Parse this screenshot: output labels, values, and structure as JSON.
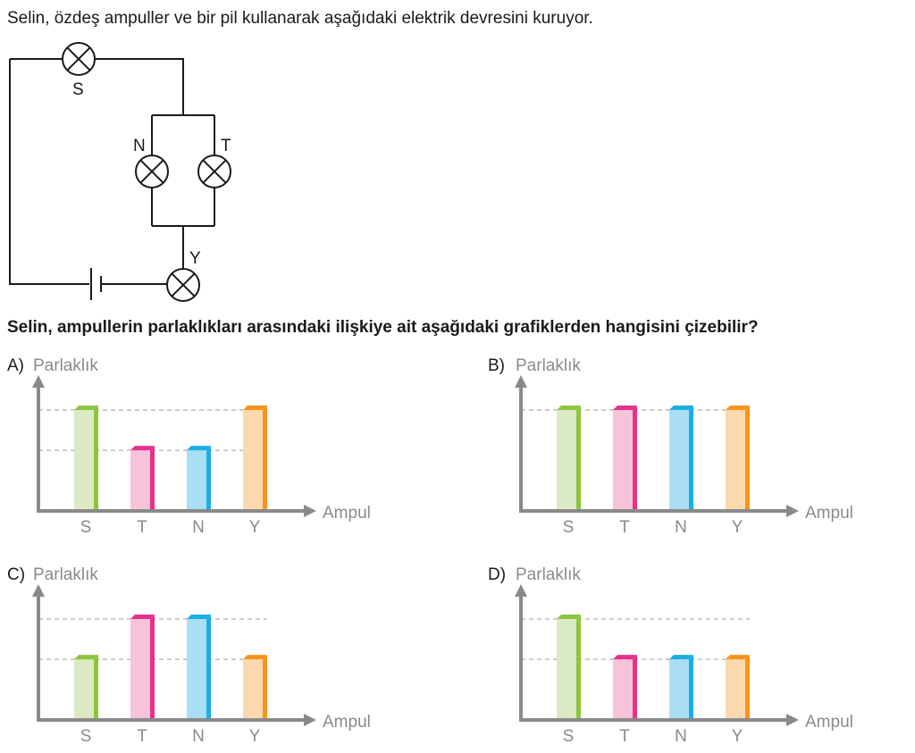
{
  "question": {
    "intro": "Selin, özdeş ampuller ve bir pil kullanarak aşağıdaki elektrik devresini kuruyor.",
    "prompt": "Selin, ampullerin parlaklıkları arasındaki ilişkiye ait aşağıdaki grafiklerden hangisini çizebilir?"
  },
  "circuit": {
    "bulbs": [
      "S",
      "N",
      "T",
      "Y"
    ]
  },
  "colors": {
    "S": {
      "front": "#dbe9c4",
      "side": "#8cc63f"
    },
    "T": {
      "front": "#f6c3d9",
      "side": "#e6318a"
    },
    "N": {
      "front": "#a9def5",
      "side": "#1aaee5"
    },
    "Y": {
      "front": "#fcd8ad",
      "side": "#f7941d"
    },
    "axis": "#8a8a8a",
    "guide": "#999999"
  },
  "chart_data": [
    {
      "type": "bar",
      "option": "A)",
      "ylabel": "Parlaklık",
      "xlabel": "Ampul",
      "categories": [
        "S",
        "T",
        "N",
        "Y"
      ],
      "values": [
        2,
        1.2,
        1.2,
        2
      ],
      "ylim": [
        0,
        2.3
      ]
    },
    {
      "type": "bar",
      "option": "B)",
      "ylabel": "Parlaklık",
      "xlabel": "Ampul",
      "categories": [
        "S",
        "T",
        "N",
        "Y"
      ],
      "values": [
        2,
        2,
        2,
        2
      ],
      "ylim": [
        0,
        2.3
      ]
    },
    {
      "type": "bar",
      "option": "C)",
      "ylabel": "Parlaklık",
      "xlabel": "Ampul",
      "categories": [
        "S",
        "T",
        "N",
        "Y"
      ],
      "values": [
        1.2,
        2,
        2,
        1.2
      ],
      "ylim": [
        0,
        2.3
      ]
    },
    {
      "type": "bar",
      "option": "D)",
      "ylabel": "Parlaklık",
      "xlabel": "Ampul",
      "categories": [
        "S",
        "T",
        "N",
        "Y"
      ],
      "values": [
        2,
        1.2,
        1.2,
        1.2
      ],
      "ylim": [
        0,
        2.3
      ]
    }
  ]
}
